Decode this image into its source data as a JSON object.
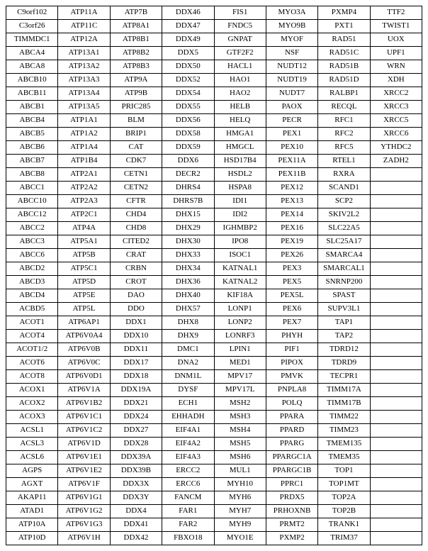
{
  "table": {
    "cols": 8,
    "rows": [
      [
        "C9orf102",
        "ATP11A",
        "ATP7B",
        "DDX46",
        "FIS1",
        "MYO3A",
        "PXMP4",
        "TTF2"
      ],
      [
        "C3orf26",
        "ATP11C",
        "ATP8A1",
        "DDX47",
        "FNDC5",
        "MYO9B",
        "PXT1",
        "TWIST1"
      ],
      [
        "TIMMDC1",
        "ATP12A",
        "ATP8B1",
        "DDX49",
        "GNPAT",
        "MYOF",
        "RAD51",
        "UOX"
      ],
      [
        "ABCA4",
        "ATP13A1",
        "ATP8B2",
        "DDX5",
        "GTF2F2",
        "NSF",
        "RAD51C",
        "UPF1"
      ],
      [
        "ABCA8",
        "ATP13A2",
        "ATP8B3",
        "DDX50",
        "HACL1",
        "NUDT12",
        "RAD51B",
        "WRN"
      ],
      [
        "ABCB10",
        "ATP13A3",
        "ATP9A",
        "DDX52",
        "HAO1",
        "NUDT19",
        "RAD51D",
        "XDH"
      ],
      [
        "ABCB11",
        "ATP13A4",
        "ATP9B",
        "DDX54",
        "HAO2",
        "NUDT7",
        "RALBP1",
        "XRCC2"
      ],
      [
        "ABCB1",
        "ATP13A5",
        "PRIC285",
        "DDX55",
        "HELB",
        "PAOX",
        "RECQL",
        "XRCC3"
      ],
      [
        "ABCB4",
        "ATP1A1",
        "BLM",
        "DDX56",
        "HELQ",
        "PECR",
        "RFC1",
        "XRCC5"
      ],
      [
        "ABCB5",
        "ATP1A2",
        "BRIP1",
        "DDX58",
        "HMGA1",
        "PEX1",
        "RFC2",
        "XRCC6"
      ],
      [
        "ABCB6",
        "ATP1A4",
        "CAT",
        "DDX59",
        "HMGCL",
        "PEX10",
        "RFC5",
        "YTHDC2"
      ],
      [
        "ABCB7",
        "ATP1B4",
        "CDK7",
        "DDX6",
        "HSD17B4",
        "PEX11A",
        "RTEL1",
        "ZADH2"
      ],
      [
        "ABCB8",
        "ATP2A1",
        "CETN1",
        "DECR2",
        "HSDL2",
        "PEX11B",
        "RXRA",
        ""
      ],
      [
        "ABCC1",
        "ATP2A2",
        "CETN2",
        "DHRS4",
        "HSPA8",
        "PEX12",
        "SCAND1",
        ""
      ],
      [
        "ABCC10",
        "ATP2A3",
        "CFTR",
        "DHRS7B",
        "IDI1",
        "PEX13",
        "SCP2",
        ""
      ],
      [
        "ABCC12",
        "ATP2C1",
        "CHD4",
        "DHX15",
        "IDI2",
        "PEX14",
        "SKIV2L2",
        ""
      ],
      [
        "ABCC2",
        "ATP4A",
        "CHD8",
        "DHX29",
        "IGHMBP2",
        "PEX16",
        "SLC22A5",
        ""
      ],
      [
        "ABCC3",
        "ATP5A1",
        "CITED2",
        "DHX30",
        "IPO8",
        "PEX19",
        "SLC25A17",
        ""
      ],
      [
        "ABCC6",
        "ATP5B",
        "CRAT",
        "DHX33",
        "ISOC1",
        "PEX26",
        "SMARCA4",
        ""
      ],
      [
        "ABCD2",
        "ATP5C1",
        "CRBN",
        "DHX34",
        "KATNAL1",
        "PEX3",
        "SMARCAL1",
        ""
      ],
      [
        "ABCD3",
        "ATP5D",
        "CROT",
        "DHX36",
        "KATNAL2",
        "PEX5",
        "SNRNP200",
        ""
      ],
      [
        "ABCD4",
        "ATP5E",
        "DAO",
        "DHX40",
        "KIF18A",
        "PEX5L",
        "SPAST",
        ""
      ],
      [
        "ACBD5",
        "ATP5L",
        "DDO",
        "DHX57",
        "LONP1",
        "PEX6",
        "SUPV3L1",
        ""
      ],
      [
        "ACOT1",
        "ATP6AP1",
        "DDX1",
        "DHX8",
        "LONP2",
        "PEX7",
        "TAP1",
        ""
      ],
      [
        "ACOT4",
        "ATP6V0A4",
        "DDX10",
        "DHX9",
        "LONRF3",
        "PHYH",
        "TAP2",
        ""
      ],
      [
        "ACOT1/2",
        "ATP6V0B",
        "DDX11",
        "DMC1",
        "LPIN1",
        "PIF1",
        "TDRD12",
        ""
      ],
      [
        "ACOT6",
        "ATP6V0C",
        "DDX17",
        "DNA2",
        "MED1",
        "PIPOX",
        "TDRD9",
        ""
      ],
      [
        "ACOT8",
        "ATP6V0D1",
        "DDX18",
        "DNM1L",
        "MPV17",
        "PMVK",
        "TECPR1",
        ""
      ],
      [
        "ACOX1",
        "ATP6V1A",
        "DDX19A",
        "DYSF",
        "MPV17L",
        "PNPLA8",
        "TIMM17A",
        ""
      ],
      [
        "ACOX2",
        "ATP6V1B2",
        "DDX21",
        "ECH1",
        "MSH2",
        "POLQ",
        "TIMM17B",
        ""
      ],
      [
        "ACOX3",
        "ATP6V1C1",
        "DDX24",
        "EHHADH",
        "MSH3",
        "PPARA",
        "TIMM22",
        ""
      ],
      [
        "ACSL1",
        "ATP6V1C2",
        "DDX27",
        "EIF4A1",
        "MSH4",
        "PPARD",
        "TIMM23",
        ""
      ],
      [
        "ACSL3",
        "ATP6V1D",
        "DDX28",
        "EIF4A2",
        "MSH5",
        "PPARG",
        "TMEM135",
        ""
      ],
      [
        "ACSL6",
        "ATP6V1E1",
        "DDX39A",
        "EIF4A3",
        "MSH6",
        "PPARGC1A",
        "TMEM35",
        ""
      ],
      [
        "AGPS",
        "ATP6V1E2",
        "DDX39B",
        "ERCC2",
        "MUL1",
        "PPARGC1B",
        "TOP1",
        ""
      ],
      [
        "AGXT",
        "ATP6V1F",
        "DDX3X",
        "ERCC6",
        "MYH10",
        "PPRC1",
        "TOP1MT",
        ""
      ],
      [
        "AKAP11",
        "ATP6V1G1",
        "DDX3Y",
        "FANCM",
        "MYH6",
        "PRDX5",
        "TOP2A",
        ""
      ],
      [
        "ATAD1",
        "ATP6V1G2",
        "DDX4",
        "FAR1",
        "MYH7",
        "PRHOXNB",
        "TOP2B",
        ""
      ],
      [
        "ATP10A",
        "ATP6V1G3",
        "DDX41",
        "FAR2",
        "MYH9",
        "PRMT2",
        "TRANK1",
        ""
      ],
      [
        "ATP10D",
        "ATP6V1H",
        "DDX42",
        "FBXO18",
        "MYO1E",
        "PXMP2",
        "TRIM37",
        ""
      ]
    ]
  }
}
